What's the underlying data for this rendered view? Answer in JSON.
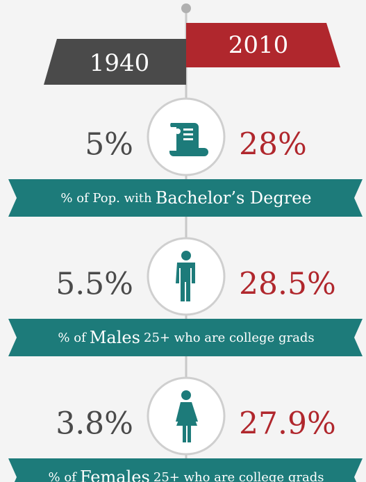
{
  "header": {
    "left_year": "1940",
    "right_year": "2010"
  },
  "rows": [
    {
      "left": "5%",
      "right": "28%",
      "icon": "diploma",
      "label_parts": [
        "% of Pop. with",
        "Bachelor’s Degree"
      ],
      "emphasis": [
        false,
        true
      ]
    },
    {
      "left": "5.5%",
      "right": "28.5%",
      "icon": "male",
      "label_parts": [
        "% of",
        "Males",
        "25+ who are college grads"
      ],
      "emphasis": [
        false,
        true,
        false
      ]
    },
    {
      "left": "3.8%",
      "right": "27.9%",
      "icon": "female",
      "label_parts": [
        "% of",
        "Females",
        "25+ who are college grads"
      ],
      "emphasis": [
        false,
        true,
        false
      ]
    }
  ]
}
